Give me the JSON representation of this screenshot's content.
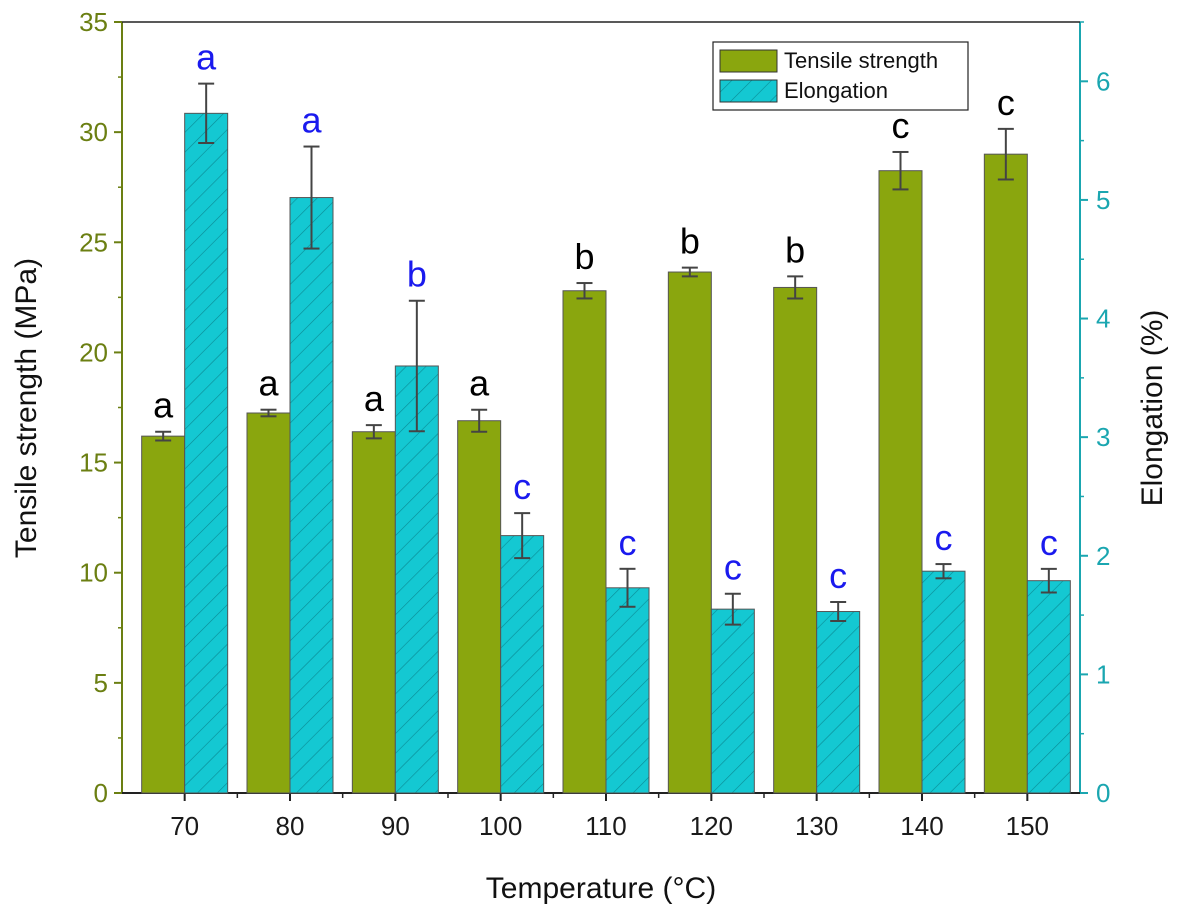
{
  "chart_data": {
    "type": "bar",
    "title": "",
    "xlabel": "Temperature (°C)",
    "ylabel": "Tensile strength (MPa)",
    "ylabel_right": "Elongation (%)",
    "categories": [
      "70",
      "80",
      "90",
      "100",
      "110",
      "120",
      "130",
      "140",
      "150"
    ],
    "ylim": [
      0,
      35
    ],
    "ylim_right": [
      0,
      6.5
    ],
    "yticks": [
      "0",
      "5",
      "10",
      "15",
      "20",
      "25",
      "30",
      "35"
    ],
    "yticks_right": [
      "0",
      "1",
      "2",
      "3",
      "4",
      "5",
      "6"
    ],
    "legend_position": "top-right",
    "series": [
      {
        "name": "Tensile strength",
        "axis": "left",
        "color": "#8aa60e",
        "values": [
          16.2,
          17.25,
          16.4,
          16.9,
          22.8,
          23.65,
          22.95,
          28.25,
          29.0
        ],
        "errors": [
          0.2,
          0.15,
          0.3,
          0.5,
          0.35,
          0.2,
          0.5,
          0.85,
          1.15
        ],
        "labels": [
          "a",
          "a",
          "a",
          "a",
          "b",
          "b",
          "b",
          "c",
          "c"
        ],
        "label_color": "#000000"
      },
      {
        "name": "Elongation",
        "axis": "right",
        "color": "#14c8d2",
        "hatch_color": "#0a8a94",
        "values": [
          5.73,
          5.02,
          3.6,
          2.17,
          1.73,
          1.55,
          1.53,
          1.87,
          1.79
        ],
        "errors": [
          0.25,
          0.43,
          0.55,
          0.19,
          0.16,
          0.13,
          0.08,
          0.06,
          0.1
        ],
        "labels": [
          "a",
          "a",
          "b",
          "c",
          "c",
          "c",
          "c",
          "c",
          "c"
        ],
        "label_color": "#1a1aee"
      }
    ],
    "colors": {
      "left_axis": "#6b7f12",
      "right_axis": "#1aa6b0",
      "error_bar": "#444444"
    }
  }
}
